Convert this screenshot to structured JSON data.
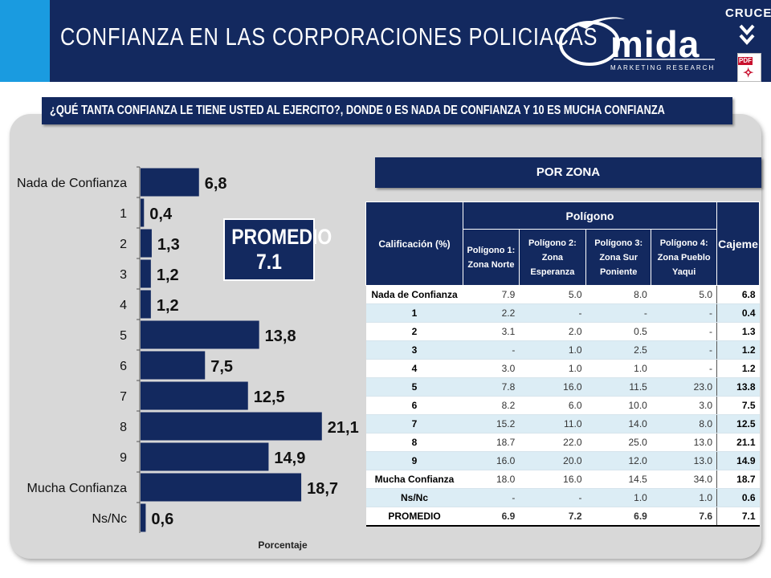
{
  "header": {
    "title": "CONFIANZA EN LAS CORPORACIONES POLICIACAS",
    "logo_text": "mida",
    "logo_subtitle": "MARKETING RESEARCH",
    "cruces_label": "CRUCES",
    "pdf_label": "PDF",
    "colors": {
      "accent": "#1a9be0",
      "band": "#13295f"
    }
  },
  "question": "¿QUÉ TANTA CONFIANZA LE TIENE USTED AL EJERCITO?, DONDE 0 ES NADA DE CONFIANZA Y 10 ES MUCHA CONFIANZA",
  "promedio": {
    "label": "PROMEDIO",
    "value": "7.1"
  },
  "chart_data": {
    "type": "bar",
    "orientation": "horizontal",
    "categories": [
      "Nada de Confianza",
      "1",
      "2",
      "3",
      "4",
      "5",
      "6",
      "7",
      "8",
      "9",
      "Mucha Confianza",
      "Ns/Nc"
    ],
    "values": [
      6.8,
      0.4,
      1.3,
      1.2,
      1.2,
      13.8,
      7.5,
      12.5,
      21.1,
      14.9,
      18.7,
      0.6
    ],
    "value_labels": [
      "6,8",
      "0,4",
      "1,3",
      "1,2",
      "1,2",
      "13,8",
      "7,5",
      "12,5",
      "21,1",
      "14,9",
      "18,7",
      "0,6"
    ],
    "xlabel": "Porcentaje",
    "ylabel": "",
    "xlim": [
      0,
      25
    ],
    "bar_color": "#13295f",
    "grid": false,
    "legend": "none"
  },
  "zona": {
    "header": "POR ZONA",
    "table": {
      "col_calificacion": "Calificación (%)",
      "col_poligono": "Polígono",
      "col_cajeme": "Cajeme",
      "subcols": [
        {
          "prefix": "Polígono 1: ",
          "bold": "Zona Norte"
        },
        {
          "prefix": "Polígono 2: ",
          "bold": "Zona Esperanza"
        },
        {
          "prefix": "Polígono 3: ",
          "bold": "Zona Sur Poniente"
        },
        {
          "prefix": "Polígono 4: ",
          "bold": "Zona Pueblo Yaqui"
        }
      ],
      "rows": [
        {
          "cat": "Nada de Confianza",
          "p1": "7.9",
          "p2": "5.0",
          "p3": "8.0",
          "p4": "5.0",
          "cajeme": "6.8"
        },
        {
          "cat": "1",
          "p1": "2.2",
          "p2": "-",
          "p3": "-",
          "p4": "-",
          "cajeme": "0.4"
        },
        {
          "cat": "2",
          "p1": "3.1",
          "p2": "2.0",
          "p3": "0.5",
          "p4": "-",
          "cajeme": "1.3"
        },
        {
          "cat": "3",
          "p1": "-",
          "p2": "1.0",
          "p3": "2.5",
          "p4": "-",
          "cajeme": "1.2"
        },
        {
          "cat": "4",
          "p1": "3.0",
          "p2": "1.0",
          "p3": "1.0",
          "p4": "-",
          "cajeme": "1.2"
        },
        {
          "cat": "5",
          "p1": "7.8",
          "p2": "16.0",
          "p3": "11.5",
          "p4": "23.0",
          "cajeme": "13.8"
        },
        {
          "cat": "6",
          "p1": "8.2",
          "p2": "6.0",
          "p3": "10.0",
          "p4": "3.0",
          "cajeme": "7.5"
        },
        {
          "cat": "7",
          "p1": "15.2",
          "p2": "11.0",
          "p3": "14.0",
          "p4": "8.0",
          "cajeme": "12.5"
        },
        {
          "cat": "8",
          "p1": "18.7",
          "p2": "22.0",
          "p3": "25.0",
          "p4": "13.0",
          "cajeme": "21.1"
        },
        {
          "cat": "9",
          "p1": "16.0",
          "p2": "20.0",
          "p3": "12.0",
          "p4": "13.0",
          "cajeme": "14.9"
        },
        {
          "cat": "Mucha Confianza",
          "p1": "18.0",
          "p2": "16.0",
          "p3": "14.5",
          "p4": "34.0",
          "cajeme": "18.7"
        },
        {
          "cat": "Ns/Nc",
          "p1": "-",
          "p2": "-",
          "p3": "1.0",
          "p4": "1.0",
          "cajeme": "0.6"
        }
      ],
      "promedio_row": {
        "cat": "PROMEDIO",
        "p1": "6.9",
        "p2": "7.2",
        "p3": "6.9",
        "p4": "7.6",
        "cajeme": "7.1"
      }
    }
  }
}
